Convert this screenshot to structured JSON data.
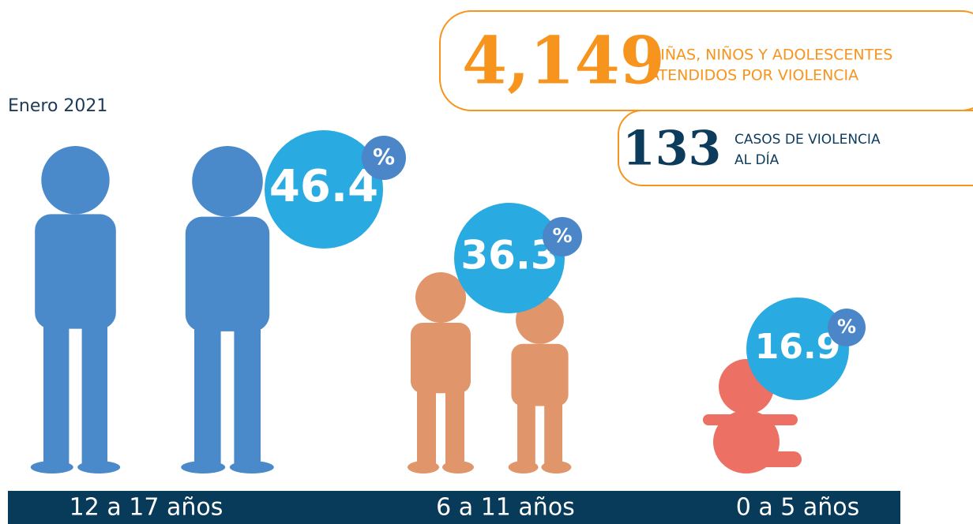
{
  "date": "Enero 2021",
  "total": {
    "number": "4,149",
    "line1": "NIÑAS, NIÑOS Y ADOLESCENTES",
    "line2": "ATENDIDOS POR VIOLENCIA"
  },
  "per_day": {
    "number": "133",
    "line1": "CASOS DE VIOLENCIA",
    "line2": "AL DÍA"
  },
  "groups": [
    {
      "label": "12 a 17 años",
      "value": 46.4,
      "unit": "%"
    },
    {
      "label": "6 a 11 años",
      "value": 36.3,
      "unit": "%"
    },
    {
      "label": "0 a 5 años",
      "value": 16.9,
      "unit": "%"
    }
  ]
}
